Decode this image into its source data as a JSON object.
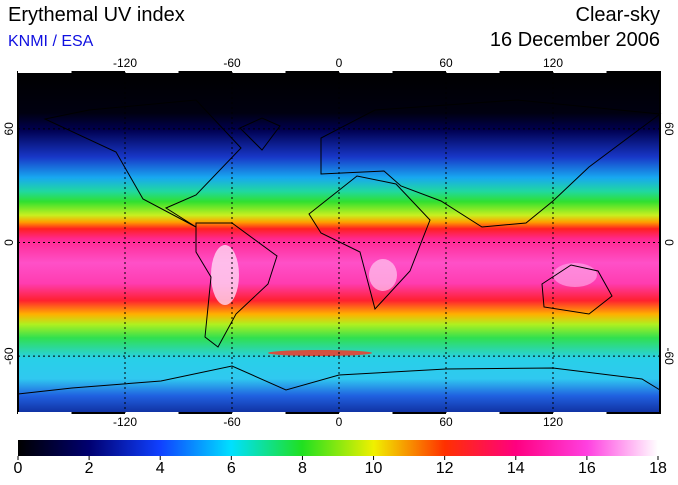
{
  "header": {
    "title": "Erythemal UV index",
    "source": "KNMI / ESA",
    "condition": "Clear-sky",
    "date": "16 December 2006"
  },
  "map": {
    "xlim": [
      -180,
      180
    ],
    "ylim": [
      -90,
      90
    ],
    "xticks": [
      -120,
      -60,
      0,
      60,
      120
    ],
    "yticks": [
      60,
      0,
      -60
    ]
  },
  "colorbar": {
    "lim": [
      0,
      18
    ],
    "ticks": [
      0,
      2,
      4,
      6,
      8,
      10,
      12,
      14,
      16,
      18
    ]
  }
}
